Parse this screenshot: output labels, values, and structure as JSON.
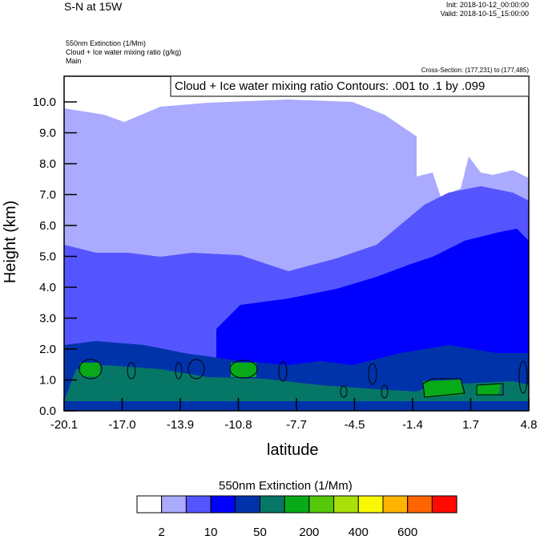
{
  "header": {
    "title": "S-N at 15W",
    "init": "Init: 2018-10-12_00:00:00",
    "valid": "Valid: 2018-10-15_15:00:00",
    "fields": [
      "550nm Extinction   (1/Mm)",
      "Cloud + Ice water mixing ratio   (g/kg)",
      "Main"
    ],
    "cross_section": "Cross-Section: (177,231) to (177,485)"
  },
  "chart_data": {
    "type": "heatmap",
    "contour_label": "Cloud + Ice water mixing ratio Contours: .001 to .1 by .099",
    "xlabel": "latitude",
    "ylabel": "Height (km)",
    "xticks": [
      "-20.1",
      "-17.0",
      "-13.9",
      "-10.8",
      "-7.7",
      "-4.5",
      "-1.4",
      "1.7",
      "4.8"
    ],
    "yticks": [
      "0.0",
      "1.0",
      "2.0",
      "3.0",
      "4.0",
      "5.0",
      "6.0",
      "7.0",
      "8.0",
      "9.0",
      "10.0"
    ],
    "xlim": [
      -20.1,
      4.8
    ],
    "ylim": [
      0,
      10.8
    ],
    "colorbar": {
      "title": "550nm Extinction  (1/Mm)",
      "colors": [
        "#ffffff",
        "#aaaaff",
        "#5555ff",
        "#0000ff",
        "#0033aa",
        "#067766",
        "#08aa18",
        "#55c80a",
        "#aae00a",
        "#f8f800",
        "#ffb400",
        "#ff6400",
        "#ff0a00"
      ],
      "labels": [
        "2",
        "10",
        "50",
        "200",
        "400",
        "600"
      ]
    }
  }
}
